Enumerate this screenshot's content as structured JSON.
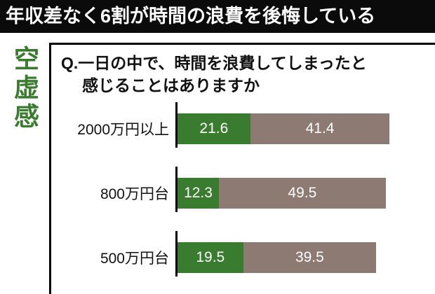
{
  "header": {
    "title": "年収差なく6割が時間の浪費を後悔している"
  },
  "sidebar": {
    "label": "空虚感"
  },
  "question": {
    "line1": "Q.一日の中で、時間を浪費してしまったと",
    "line2": "感じることはありますか"
  },
  "chart_data": {
    "type": "bar",
    "orientation": "horizontal",
    "stacked": true,
    "categories": [
      "2000万円以上",
      "800万円台",
      "500万円台"
    ],
    "series": [
      {
        "name": "segment1",
        "color": "#3a7c2f",
        "values": [
          21.6,
          12.3,
          19.5
        ]
      },
      {
        "name": "segment2",
        "color": "#8d7a73",
        "values": [
          41.4,
          49.5,
          39.5
        ]
      }
    ],
    "xlim": [
      0,
      65
    ],
    "value_labels": "inside-white",
    "axis_color": "#000000",
    "grid": false,
    "legend": false
  },
  "colors": {
    "header_bg": "#0b0b0b",
    "header_text": "#ffffff",
    "sidebar_text": "#3a7c2f",
    "green": "#3a7c2f",
    "brown": "#8d7a73"
  }
}
